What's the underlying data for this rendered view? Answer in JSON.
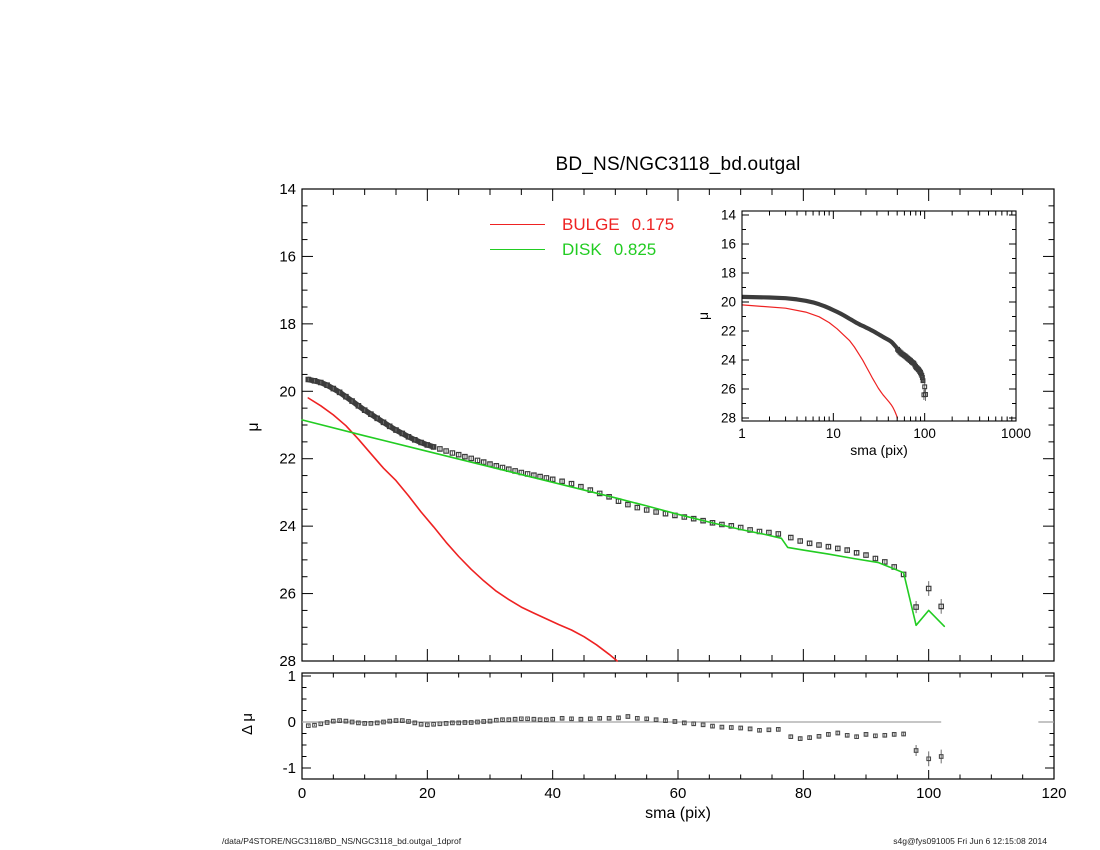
{
  "title": "BD_NS/NGC3118_bd.outgal",
  "legend": {
    "items": [
      {
        "label": "BULGE",
        "fraction": "0.175",
        "color": "#ee2222"
      },
      {
        "label": "DISK",
        "fraction": "0.825",
        "color": "#22cc22"
      }
    ]
  },
  "footer": {
    "left_path": "/data/P4STORE/NGC3118/BD_NS/NGC3118_bd.outgal_1dprof",
    "right_stamp": "s4g@fys091005  Fri Jun  6 12:15:08 2014"
  },
  "chart_data": [
    {
      "id": "main",
      "type": "scatter",
      "title": "BD_NS/NGC3118_bd.outgal",
      "xlabel": "sma (pix)",
      "ylabel": "μ",
      "xlim": [
        0,
        120
      ],
      "ylim": [
        28,
        14
      ],
      "xticks": [
        0,
        20,
        40,
        60,
        80,
        100,
        120
      ],
      "yticks": [
        14,
        16,
        18,
        20,
        22,
        24,
        26,
        28
      ],
      "x_minor_step": 5,
      "y_minor_step": 0.5,
      "grid": false,
      "legend_position": "top-center",
      "series": [
        {
          "name": "data",
          "style": "squares",
          "color": "#3c3c3c",
          "x": [
            1,
            2,
            3,
            4,
            5,
            6,
            7,
            8,
            9,
            10,
            11,
            12,
            13,
            14,
            15,
            16,
            17,
            18,
            19,
            20,
            21,
            22,
            23,
            24,
            25,
            26,
            27,
            28,
            29,
            30,
            31,
            32,
            33,
            34,
            35,
            36,
            37,
            38,
            39,
            40,
            41.5,
            43,
            44.5,
            46,
            47.5,
            49,
            50.5,
            52,
            53.5,
            55,
            56.5,
            58,
            59.5,
            61,
            62.5,
            64,
            65.5,
            67,
            68.5,
            70,
            71.5,
            73,
            74.5,
            76,
            78,
            79.5,
            81,
            82.5,
            84,
            85.5,
            87,
            88.5,
            90,
            91.5,
            93,
            94.5,
            96,
            98,
            100,
            102
          ],
          "y": [
            19.65,
            19.69,
            19.74,
            19.82,
            19.92,
            20.03,
            20.16,
            20.29,
            20.43,
            20.56,
            20.68,
            20.8,
            20.92,
            21.04,
            21.15,
            21.25,
            21.35,
            21.44,
            21.52,
            21.59,
            21.65,
            21.71,
            21.77,
            21.83,
            21.88,
            21.94,
            21.99,
            22.05,
            22.1,
            22.16,
            22.21,
            22.26,
            22.31,
            22.36,
            22.41,
            22.45,
            22.49,
            22.53,
            22.57,
            22.61,
            22.67,
            22.74,
            22.83,
            22.93,
            23.03,
            23.13,
            23.26,
            23.36,
            23.45,
            23.52,
            23.58,
            23.63,
            23.68,
            23.73,
            23.78,
            23.84,
            23.9,
            23.95,
            23.99,
            24.04,
            24.11,
            24.16,
            24.19,
            24.23,
            24.34,
            24.44,
            24.51,
            24.56,
            24.61,
            24.66,
            24.71,
            24.79,
            24.86,
            24.96,
            25.06,
            25.21,
            25.43,
            26.4,
            25.85,
            26.38
          ],
          "yerr": [
            0.06,
            0.06,
            0.06,
            0.06,
            0.06,
            0.06,
            0.06,
            0.06,
            0.06,
            0.06,
            0.05,
            0.05,
            0.05,
            0.05,
            0.05,
            0.05,
            0.05,
            0.05,
            0.05,
            0.05,
            0.05,
            0.05,
            0.05,
            0.05,
            0.05,
            0.05,
            0.05,
            0.05,
            0.05,
            0.05,
            0.05,
            0.05,
            0.05,
            0.05,
            0.05,
            0.05,
            0.05,
            0.05,
            0.05,
            0.05,
            0.05,
            0.05,
            0.05,
            0.05,
            0.05,
            0.05,
            0.05,
            0.05,
            0.05,
            0.05,
            0.05,
            0.05,
            0.05,
            0.05,
            0.05,
            0.05,
            0.05,
            0.05,
            0.05,
            0.05,
            0.05,
            0.05,
            0.05,
            0.05,
            0.08,
            0.08,
            0.08,
            0.08,
            0.08,
            0.08,
            0.08,
            0.08,
            0.08,
            0.08,
            0.08,
            0.08,
            0.08,
            0.18,
            0.22,
            0.22
          ]
        },
        {
          "name": "BULGE",
          "style": "line",
          "color": "#ee2222",
          "fraction": 0.175,
          "x": [
            1,
            3,
            5,
            7,
            9,
            11,
            13,
            15,
            17,
            19,
            21,
            23,
            25,
            27,
            29,
            31,
            33,
            35,
            37,
            39,
            41,
            43,
            45,
            47,
            49,
            50.3
          ],
          "y": [
            20.2,
            20.43,
            20.7,
            21.02,
            21.42,
            21.85,
            22.28,
            22.65,
            23.1,
            23.58,
            24.02,
            24.48,
            24.9,
            25.28,
            25.62,
            25.93,
            26.18,
            26.4,
            26.58,
            26.75,
            26.92,
            27.08,
            27.28,
            27.52,
            27.8,
            28.0
          ]
        },
        {
          "name": "DISK",
          "style": "line",
          "color": "#22cc22",
          "fraction": 0.825,
          "x": [
            0,
            10,
            20,
            30,
            40,
            50,
            55,
            60,
            65,
            70,
            74,
            76.5,
            77.5,
            80,
            84,
            88,
            92,
            96,
            98,
            100,
            102.5
          ],
          "y": [
            20.85,
            21.32,
            21.78,
            22.24,
            22.7,
            23.16,
            23.4,
            23.65,
            23.88,
            24.1,
            24.25,
            24.36,
            24.63,
            24.71,
            24.83,
            24.96,
            25.08,
            25.38,
            26.94,
            26.5,
            26.97
          ]
        }
      ]
    },
    {
      "id": "inset",
      "type": "scatter",
      "xscale": "log",
      "xlabel": "sma (pix)",
      "ylabel": "μ",
      "xlim": [
        1,
        1000
      ],
      "ylim": [
        28,
        14
      ],
      "xticks": [
        1,
        10,
        100,
        1000
      ],
      "xtick_labels": [
        "1",
        "10",
        "100",
        "1000"
      ],
      "yticks": [
        14,
        16,
        18,
        20,
        22,
        24,
        26,
        28
      ],
      "grid": false,
      "series_ref": "main"
    },
    {
      "id": "residual",
      "type": "scatter",
      "xlabel": "sma (pix)",
      "ylabel": "Δ μ",
      "xlim": [
        0,
        120
      ],
      "ylim": [
        -1,
        1
      ],
      "xticks": [
        0,
        20,
        40,
        60,
        80,
        100,
        120
      ],
      "yticks": [
        -1,
        0,
        1
      ],
      "x_minor_step": 5,
      "y_minor_step": 0.25,
      "grid": false,
      "series": [
        {
          "name": "delta-mu",
          "style": "squares",
          "color": "#4a4a4a",
          "x": [
            1,
            2,
            3,
            4,
            5,
            6,
            7,
            8,
            9,
            10,
            11,
            12,
            13,
            14,
            15,
            16,
            17,
            18,
            19,
            20,
            21,
            22,
            23,
            24,
            25,
            26,
            27,
            28,
            29,
            30,
            31,
            32,
            33,
            34,
            35,
            36,
            37,
            38,
            39,
            40,
            41.5,
            43,
            44.5,
            46,
            47.5,
            49,
            50.5,
            52,
            53.5,
            55,
            56.5,
            58,
            59.5,
            61,
            62.5,
            64,
            65.5,
            67,
            68.5,
            70,
            71.5,
            73,
            74.5,
            76,
            78,
            79.5,
            81,
            82.5,
            84,
            85.5,
            87,
            88.5,
            90,
            91.5,
            93,
            94.5,
            96,
            98,
            100,
            102
          ],
          "y": [
            -0.08,
            -0.07,
            -0.04,
            -0.01,
            0.02,
            0.03,
            0.02,
            0.0,
            -0.02,
            -0.03,
            -0.03,
            -0.02,
            0.0,
            0.02,
            0.03,
            0.03,
            0.01,
            -0.02,
            -0.05,
            -0.06,
            -0.05,
            -0.04,
            -0.03,
            -0.02,
            -0.02,
            -0.01,
            -0.01,
            0.0,
            0.01,
            0.02,
            0.04,
            0.05,
            0.05,
            0.06,
            0.07,
            0.07,
            0.06,
            0.05,
            0.05,
            0.06,
            0.08,
            0.07,
            0.06,
            0.07,
            0.08,
            0.08,
            0.09,
            0.12,
            0.08,
            0.07,
            0.05,
            0.03,
            0.01,
            -0.02,
            -0.04,
            -0.06,
            -0.09,
            -0.11,
            -0.12,
            -0.13,
            -0.15,
            -0.18,
            -0.17,
            -0.16,
            -0.32,
            -0.36,
            -0.34,
            -0.31,
            -0.27,
            -0.24,
            -0.29,
            -0.32,
            -0.27,
            -0.3,
            -0.29,
            -0.27,
            -0.26,
            -0.62,
            -0.8,
            -0.75
          ],
          "yerr": [
            0.02,
            0.02,
            0.02,
            0.02,
            0.02,
            0.02,
            0.02,
            0.02,
            0.02,
            0.02,
            0.02,
            0.02,
            0.02,
            0.02,
            0.02,
            0.02,
            0.02,
            0.02,
            0.02,
            0.02,
            0.02,
            0.02,
            0.02,
            0.02,
            0.02,
            0.02,
            0.02,
            0.02,
            0.02,
            0.02,
            0.02,
            0.02,
            0.02,
            0.02,
            0.02,
            0.02,
            0.02,
            0.02,
            0.02,
            0.02,
            0.03,
            0.03,
            0.03,
            0.03,
            0.03,
            0.03,
            0.03,
            0.03,
            0.03,
            0.03,
            0.03,
            0.03,
            0.03,
            0.03,
            0.03,
            0.03,
            0.03,
            0.03,
            0.03,
            0.03,
            0.03,
            0.03,
            0.03,
            0.03,
            0.05,
            0.05,
            0.05,
            0.05,
            0.05,
            0.05,
            0.05,
            0.05,
            0.05,
            0.05,
            0.05,
            0.05,
            0.05,
            0.12,
            0.16,
            0.15
          ]
        },
        {
          "name": "zero-line",
          "style": "line",
          "color": "#a3a3a3",
          "segments": [
            [
              0,
              102
            ],
            [
              117.5,
              120
            ]
          ],
          "y_value": 0
        }
      ]
    }
  ]
}
